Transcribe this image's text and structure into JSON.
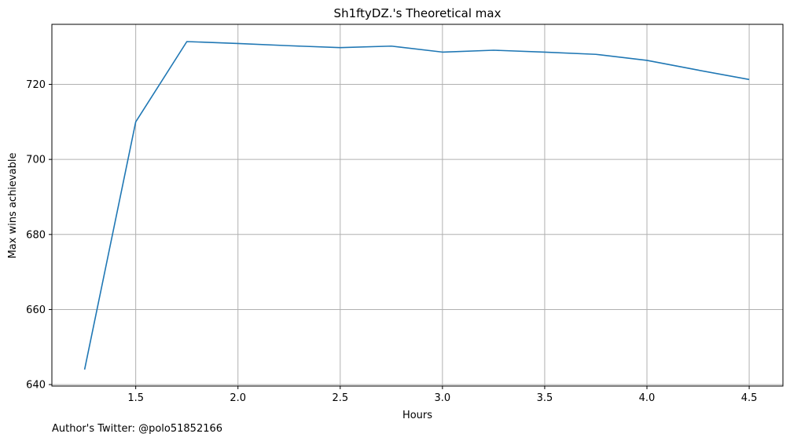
{
  "chart_data": {
    "type": "line",
    "title": "Sh1ftyDZ.'s Theoretical max",
    "xlabel": "Hours",
    "ylabel": "Max wins achievable",
    "x": [
      1.25,
      1.5,
      1.75,
      2.0,
      2.25,
      2.5,
      2.75,
      3.0,
      3.25,
      3.5,
      3.75,
      4.0,
      4.25,
      4.5
    ],
    "series": [
      {
        "values": [
          644,
          710,
          731.4,
          730.9,
          730.3,
          729.8,
          730.2,
          728.6,
          729.1,
          728.6,
          728.0,
          726.4,
          723.8,
          721.3
        ],
        "color": "#1f77b4"
      }
    ],
    "xticks": [
      "1.5",
      "2.0",
      "2.5",
      "3.0",
      "3.5",
      "4.0",
      "4.5"
    ],
    "yticks": [
      "640",
      "660",
      "680",
      "700",
      "720"
    ],
    "xlim": [
      1.09,
      4.665
    ],
    "ylim": [
      639.6,
      736.0
    ],
    "grid": true
  },
  "footer": {
    "text": "Author's Twitter: @polo51852166"
  }
}
